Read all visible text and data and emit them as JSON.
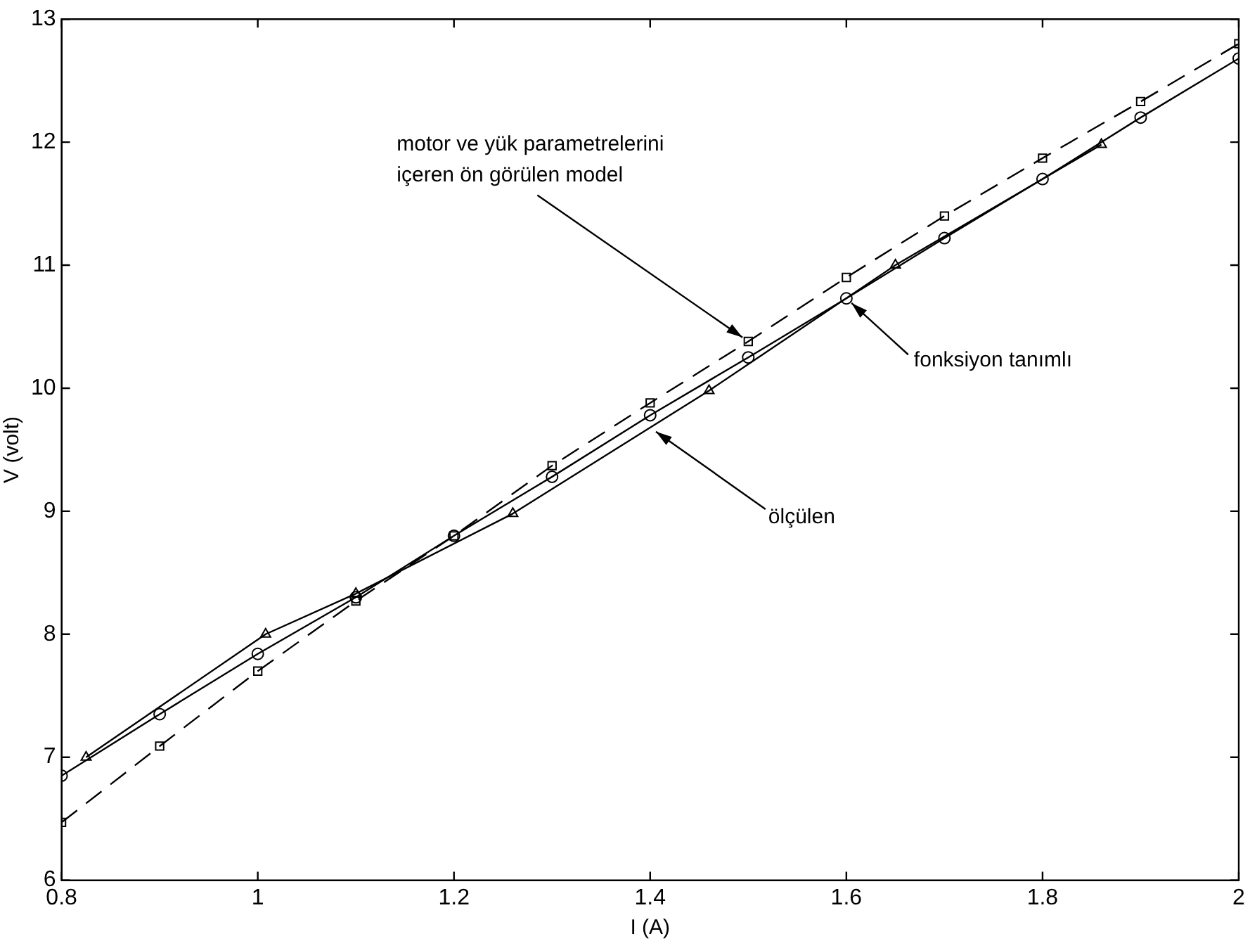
{
  "chart_data": {
    "type": "line",
    "xlabel": "I (A)",
    "ylabel": "V (volt)",
    "xlim": [
      0.8,
      2
    ],
    "xticks": [
      0.8,
      1,
      1.2,
      1.4,
      1.6,
      1.8,
      2
    ],
    "ylim": [
      6,
      13
    ],
    "yticks": [
      6,
      7,
      8,
      9,
      10,
      11,
      12,
      13
    ],
    "grid": false,
    "legend": false,
    "series": [
      {
        "color": "#000000",
        "marker": "circle",
        "line_style": "solid",
        "x": [
          0.8,
          0.9,
          1,
          1.1,
          1.2,
          1.3,
          1.4,
          1.5,
          1.6,
          1.7,
          1.8,
          1.9,
          2
        ],
        "values": [
          6.85,
          7.35,
          7.84,
          8.3,
          8.8,
          9.28,
          9.78,
          10.25,
          10.73,
          11.22,
          11.7,
          12.2,
          12.68
        ]
      },
      {
        "color": "#000000",
        "marker": "triangle",
        "line_style": "solid",
        "x": [
          0.825,
          1.008,
          1.1,
          1.26,
          1.46,
          1.65,
          1.86
        ],
        "values": [
          7.0,
          8.0,
          8.33,
          8.98,
          9.98,
          11.0,
          11.98
        ]
      },
      {
        "color": "#000000",
        "marker": "square",
        "line_style": "dashed",
        "x": [
          0.8,
          0.9,
          1,
          1.1,
          1.2,
          1.3,
          1.4,
          1.5,
          1.6,
          1.7,
          1.8,
          1.9,
          2
        ],
        "values": [
          6.47,
          7.09,
          7.7,
          8.27,
          8.8,
          9.37,
          9.88,
          10.38,
          10.9,
          11.4,
          11.87,
          12.33,
          12.8
        ]
      }
    ],
    "annotations": [
      {
        "text": "motor ve yük parametrelerini\niçeren ön görülen model",
        "x": 1.5,
        "y": 10.38
      },
      {
        "text": "fonksiyon tanımlı",
        "x": 1.6,
        "y": 10.73
      },
      {
        "text": "ölçülen",
        "x": 1.4,
        "y": 9.68
      }
    ]
  }
}
